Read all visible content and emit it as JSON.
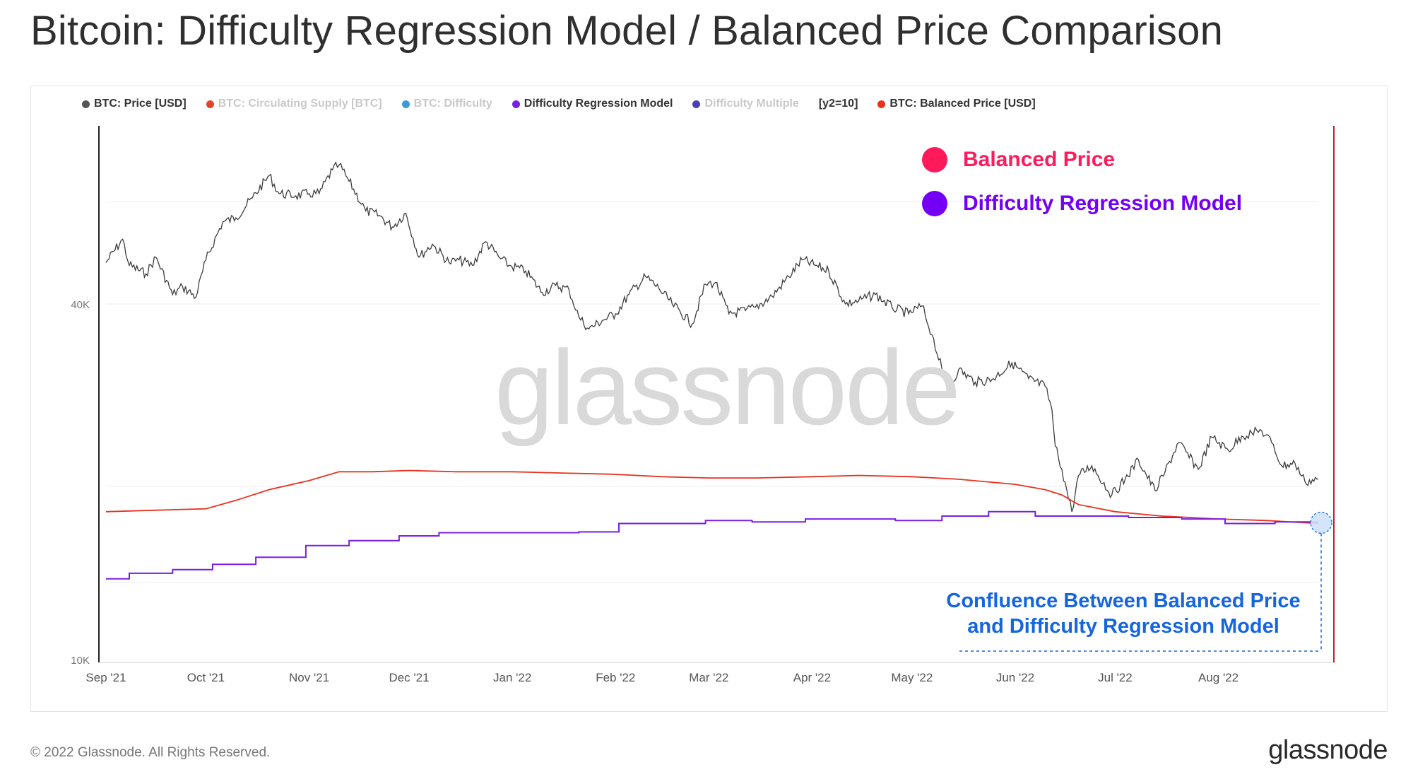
{
  "title": "Bitcoin: Difficulty Regression Model / Balanced Price Comparison",
  "legend": [
    {
      "label": "BTC: Price [USD]",
      "color": "#555555",
      "active": true
    },
    {
      "label": "BTC: Circulating Supply [BTC]",
      "color": "#e0452a",
      "active": false
    },
    {
      "label": "BTC: Difficulty",
      "color": "#3a9bd9",
      "active": false
    },
    {
      "label": "Difficulty Regression Model",
      "color": "#7a1fe6",
      "active": true
    },
    {
      "label": "Difficulty Multiple",
      "color": "#4a3fb5",
      "active": false
    },
    {
      "label": "[y2=10]",
      "color": null,
      "active": true
    },
    {
      "label": "BTC: Balanced Price [USD]",
      "color": "#e8321f",
      "active": true
    }
  ],
  "annotations": {
    "balanced_label": "Balanced Price",
    "balanced_color": "#ff1a5b",
    "drm_label": "Difficulty Regression Model",
    "drm_color": "#7300f5",
    "confluence_line1": "Confluence Between Balanced Price",
    "confluence_line2": "and Difficulty Regression Model",
    "confluence_color": "#1565e0"
  },
  "watermark": "glassnode",
  "footer": {
    "copyright": "© 2022 Glassnode. All Rights Reserved.",
    "logo": "glassnode"
  },
  "chart_data": {
    "type": "line",
    "y_scale": "log",
    "yticks": [
      {
        "value": 40000,
        "label": "40K"
      },
      {
        "value": 10000,
        "label": "10K"
      }
    ],
    "xticks": [
      "Sep '21",
      "Oct '21",
      "Nov '21",
      "Dec '21",
      "Jan '22",
      "Feb '22",
      "Mar '22",
      "Apr '22",
      "May '22",
      "Jun '22",
      "Jul '22",
      "Aug '22"
    ],
    "x_range": [
      "2021-09-01",
      "2022-08-31"
    ],
    "grid": true,
    "series": [
      {
        "name": "BTC: Price [USD]",
        "color": "#555555",
        "points": [
          [
            "2021-09-01",
            47000
          ],
          [
            "2021-09-06",
            51500
          ],
          [
            "2021-09-08",
            46500
          ],
          [
            "2021-09-13",
            45000
          ],
          [
            "2021-09-16",
            48000
          ],
          [
            "2021-09-21",
            41500
          ],
          [
            "2021-09-24",
            42800
          ],
          [
            "2021-09-28",
            41100
          ],
          [
            "2021-10-01",
            47500
          ],
          [
            "2021-10-06",
            55000
          ],
          [
            "2021-10-10",
            56000
          ],
          [
            "2021-10-15",
            60500
          ],
          [
            "2021-10-20",
            66000
          ],
          [
            "2021-10-23",
            61500
          ],
          [
            "2021-10-28",
            61000
          ],
          [
            "2021-11-01",
            61500
          ],
          [
            "2021-11-04",
            61500
          ],
          [
            "2021-11-08",
            67500
          ],
          [
            "2021-11-10",
            68800
          ],
          [
            "2021-11-13",
            64500
          ],
          [
            "2021-11-18",
            57500
          ],
          [
            "2021-11-22",
            56500
          ],
          [
            "2021-11-26",
            54000
          ],
          [
            "2021-11-30",
            57000
          ],
          [
            "2021-12-04",
            48000
          ],
          [
            "2021-12-08",
            50500
          ],
          [
            "2021-12-13",
            47000
          ],
          [
            "2021-12-16",
            47500
          ],
          [
            "2021-12-20",
            46500
          ],
          [
            "2021-12-24",
            51000
          ],
          [
            "2021-12-28",
            48000
          ],
          [
            "2021-12-31",
            46500
          ],
          [
            "2022-01-05",
            45500
          ],
          [
            "2022-01-10",
            41800
          ],
          [
            "2022-01-14",
            43000
          ],
          [
            "2022-01-18",
            42300
          ],
          [
            "2022-01-21",
            38000
          ],
          [
            "2022-01-24",
            36300
          ],
          [
            "2022-01-28",
            37500
          ],
          [
            "2022-02-01",
            38500
          ],
          [
            "2022-02-05",
            41500
          ],
          [
            "2022-02-10",
            44500
          ],
          [
            "2022-02-14",
            42500
          ],
          [
            "2022-02-18",
            40000
          ],
          [
            "2022-02-24",
            37000
          ],
          [
            "2022-02-28",
            43200
          ],
          [
            "2022-03-03",
            43500
          ],
          [
            "2022-03-07",
            38500
          ],
          [
            "2022-03-12",
            39000
          ],
          [
            "2022-03-15",
            39500
          ],
          [
            "2022-03-20",
            41200
          ],
          [
            "2022-03-25",
            44500
          ],
          [
            "2022-03-29",
            47500
          ],
          [
            "2022-04-02",
            46500
          ],
          [
            "2022-04-06",
            45500
          ],
          [
            "2022-04-11",
            40000
          ],
          [
            "2022-04-15",
            40500
          ],
          [
            "2022-04-20",
            41500
          ],
          [
            "2022-04-25",
            39500
          ],
          [
            "2022-04-30",
            38500
          ],
          [
            "2022-05-04",
            39700
          ],
          [
            "2022-05-07",
            35500
          ],
          [
            "2022-05-10",
            31000
          ],
          [
            "2022-05-12",
            28800
          ],
          [
            "2022-05-15",
            31000
          ],
          [
            "2022-05-20",
            29500
          ],
          [
            "2022-05-25",
            29800
          ],
          [
            "2022-05-31",
            31800
          ],
          [
            "2022-06-05",
            29900
          ],
          [
            "2022-06-10",
            29000
          ],
          [
            "2022-06-12",
            26500
          ],
          [
            "2022-06-13",
            23000
          ],
          [
            "2022-06-15",
            21000
          ],
          [
            "2022-06-18",
            17800
          ],
          [
            "2022-06-20",
            20500
          ],
          [
            "2022-06-24",
            21300
          ],
          [
            "2022-06-30",
            19000
          ],
          [
            "2022-07-04",
            20200
          ],
          [
            "2022-07-08",
            21800
          ],
          [
            "2022-07-13",
            19300
          ],
          [
            "2022-07-16",
            20800
          ],
          [
            "2022-07-20",
            23300
          ],
          [
            "2022-07-26",
            21000
          ],
          [
            "2022-07-30",
            23800
          ],
          [
            "2022-08-04",
            22600
          ],
          [
            "2022-08-08",
            23900
          ],
          [
            "2022-08-11",
            24200
          ],
          [
            "2022-08-14",
            24400
          ],
          [
            "2022-08-17",
            23300
          ],
          [
            "2022-08-20",
            21300
          ],
          [
            "2022-08-24",
            21500
          ],
          [
            "2022-08-27",
            20000
          ],
          [
            "2022-08-31",
            20200
          ]
        ]
      },
      {
        "name": "BTC: Balanced Price [USD]",
        "color": "#e8321f",
        "points": [
          [
            "2021-09-01",
            17800
          ],
          [
            "2021-09-15",
            17900
          ],
          [
            "2021-10-01",
            18000
          ],
          [
            "2021-10-10",
            18600
          ],
          [
            "2021-10-20",
            19400
          ],
          [
            "2021-11-01",
            20100
          ],
          [
            "2021-11-10",
            20800
          ],
          [
            "2021-11-20",
            20800
          ],
          [
            "2021-12-01",
            20900
          ],
          [
            "2021-12-15",
            20800
          ],
          [
            "2022-01-01",
            20800
          ],
          [
            "2022-01-15",
            20700
          ],
          [
            "2022-01-31",
            20600
          ],
          [
            "2022-02-15",
            20400
          ],
          [
            "2022-03-01",
            20300
          ],
          [
            "2022-03-15",
            20300
          ],
          [
            "2022-04-01",
            20400
          ],
          [
            "2022-04-15",
            20500
          ],
          [
            "2022-05-01",
            20400
          ],
          [
            "2022-05-15",
            20200
          ],
          [
            "2022-06-01",
            19800
          ],
          [
            "2022-06-10",
            19400
          ],
          [
            "2022-06-15",
            19000
          ],
          [
            "2022-06-20",
            18300
          ],
          [
            "2022-07-01",
            17800
          ],
          [
            "2022-07-15",
            17500
          ],
          [
            "2022-08-01",
            17300
          ],
          [
            "2022-08-15",
            17200
          ],
          [
            "2022-08-31",
            17000
          ]
        ]
      },
      {
        "name": "Difficulty Regression Model",
        "color": "#7a1fe6",
        "step": true,
        "points": [
          [
            "2021-09-01",
            13700
          ],
          [
            "2021-09-08",
            14000
          ],
          [
            "2021-09-21",
            14200
          ],
          [
            "2021-10-03",
            14500
          ],
          [
            "2021-10-16",
            14900
          ],
          [
            "2021-10-31",
            15600
          ],
          [
            "2021-11-13",
            15900
          ],
          [
            "2021-11-28",
            16200
          ],
          [
            "2021-12-10",
            16400
          ],
          [
            "2021-12-24",
            16400
          ],
          [
            "2022-01-06",
            16400
          ],
          [
            "2022-01-21",
            16450
          ],
          [
            "2022-02-02",
            17000
          ],
          [
            "2022-02-15",
            17000
          ],
          [
            "2022-02-28",
            17200
          ],
          [
            "2022-03-14",
            17100
          ],
          [
            "2022-03-30",
            17300
          ],
          [
            "2022-04-12",
            17300
          ],
          [
            "2022-04-26",
            17200
          ],
          [
            "2022-05-10",
            17500
          ],
          [
            "2022-05-24",
            17800
          ],
          [
            "2022-06-07",
            17500
          ],
          [
            "2022-06-22",
            17500
          ],
          [
            "2022-07-05",
            17400
          ],
          [
            "2022-07-21",
            17300
          ],
          [
            "2022-08-03",
            17000
          ],
          [
            "2022-08-18",
            17100
          ],
          [
            "2022-08-31",
            17100
          ]
        ]
      }
    ]
  }
}
